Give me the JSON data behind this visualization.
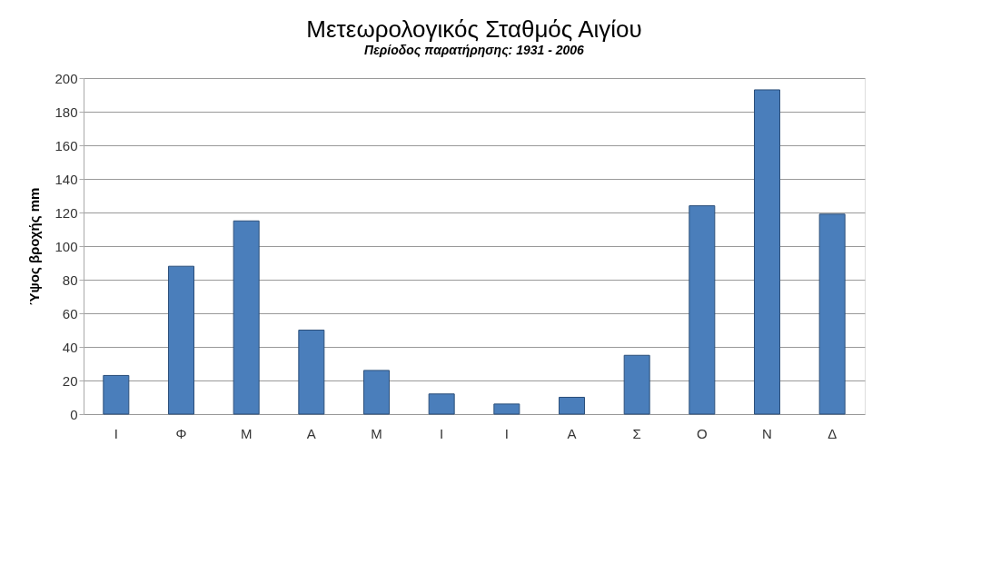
{
  "chart_data": {
    "type": "bar",
    "title": "Μετεωρολογικός Σταθμός Αιγίου",
    "subtitle": "Περίοδος παρατήρησης: 1931 - 2006",
    "ylabel": "Ύψος βροχής mm",
    "categories": [
      "Ι",
      "Φ",
      "Μ",
      "Α",
      "Μ",
      "Ι",
      "Ι",
      "Α",
      "Σ",
      "Ο",
      "Ν",
      "Δ"
    ],
    "values": [
      23,
      88,
      115,
      50,
      26,
      12,
      6,
      10,
      35,
      124,
      193,
      119
    ],
    "color": "#4a7ebb",
    "ylim": [
      0,
      200
    ],
    "yticks": [
      0,
      20,
      40,
      60,
      80,
      100,
      120,
      140,
      160,
      180,
      200
    ],
    "grid": "y"
  }
}
